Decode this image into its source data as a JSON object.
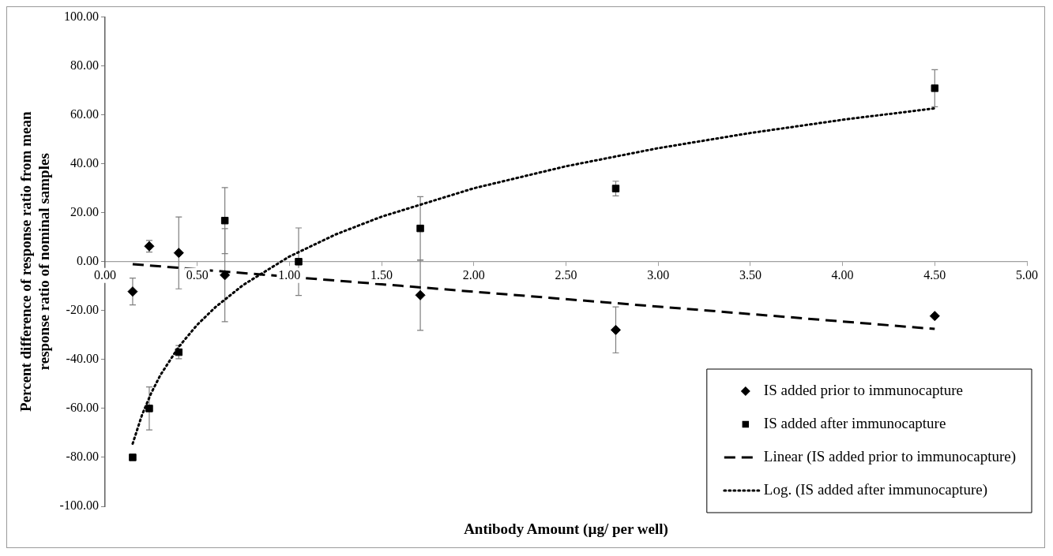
{
  "chart_data": {
    "type": "scatter",
    "xlabel": "Antibody Amount (µg/ per well)",
    "ylabel": "Percent difference of response ratio from mean response ratio of nominal samples",
    "xlim": [
      0,
      5
    ],
    "xticks": [
      {
        "value": 0,
        "label": "0.00"
      },
      {
        "value": 0.5,
        "label": "0.50"
      },
      {
        "value": 1,
        "label": "1.00"
      },
      {
        "value": 1.5,
        "label": "1.50"
      },
      {
        "value": 2,
        "label": "2.00"
      },
      {
        "value": 2.5,
        "label": "2.50"
      },
      {
        "value": 3,
        "label": "3.00"
      },
      {
        "value": 3.5,
        "label": "3.50"
      },
      {
        "value": 4,
        "label": "4.00"
      },
      {
        "value": 4.5,
        "label": "4.50"
      },
      {
        "value": 5,
        "label": "5.00"
      }
    ],
    "ylim": [
      -100,
      100
    ],
    "yticks": [
      {
        "value": -100,
        "label": "-100.00"
      },
      {
        "value": -80,
        "label": "-80.00"
      },
      {
        "value": -60,
        "label": "-60.00"
      },
      {
        "value": -40,
        "label": "-40.00"
      },
      {
        "value": -20,
        "label": "-20.00"
      },
      {
        "value": 0,
        "label": "0.00"
      },
      {
        "value": 20,
        "label": "20.00"
      },
      {
        "value": 40,
        "label": "40.00"
      },
      {
        "value": 60,
        "label": "60.00"
      },
      {
        "value": 80,
        "label": "80.00"
      },
      {
        "value": 100,
        "label": "100.00"
      }
    ],
    "grid": false,
    "legend": "bottom right",
    "series": [
      {
        "name": "IS added prior to immunocapture",
        "type": "scatter",
        "marker": "diamond",
        "color": "#000000",
        "x": [
          0.15,
          0.24,
          0.4,
          0.65,
          1.05,
          1.71,
          2.77,
          4.5
        ],
        "values": [
          -12.2,
          6.3,
          3.6,
          -5.5,
          null,
          -13.7,
          -27.9,
          -22.2
        ],
        "errors": [
          5.5,
          2.4,
          14.7,
          19,
          null,
          14.4,
          9.4,
          null
        ]
      },
      {
        "name": "IS added after immunocapture",
        "type": "scatter",
        "marker": "square",
        "color": "#000000",
        "x": [
          0.15,
          0.24,
          0.4,
          0.65,
          1.05,
          1.71,
          2.77,
          4.5
        ],
        "values": [
          -80,
          -60,
          -37,
          16.8,
          0,
          13.6,
          29.9,
          70.9
        ],
        "errors": [
          null,
          8.8,
          2.7,
          13.5,
          13.8,
          13,
          3,
          7.6
        ]
      },
      {
        "name": "Linear (IS added prior to immunocapture)",
        "type": "line",
        "marker": "none",
        "line_style": "dashed",
        "color": "#000000",
        "x": [
          0.15,
          4.5
        ],
        "values": [
          -1,
          -27.5
        ]
      },
      {
        "name": "Log. (IS added after immunocapture)",
        "type": "line",
        "marker": "none",
        "line_style": "dotted",
        "color": "#000000",
        "x": [
          0.15,
          0.2,
          0.25,
          0.3,
          0.4,
          0.5,
          0.6,
          0.75,
          1,
          1.25,
          1.5,
          2,
          2.5,
          3,
          3.5,
          4,
          4.5
        ],
        "values": [
          -74.4,
          -62.8,
          -53.8,
          -46.4,
          -34.8,
          -25.8,
          -18.5,
          -9.5,
          2.1,
          11.1,
          18.4,
          30,
          39,
          46.4,
          52.6,
          58,
          62.7
        ]
      }
    ]
  }
}
